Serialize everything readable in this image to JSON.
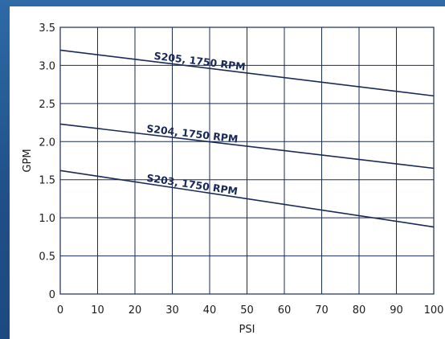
{
  "chart_data": {
    "type": "line",
    "title": "",
    "xlabel": "PSI",
    "ylabel": "GPM",
    "xlim": [
      0,
      100
    ],
    "ylim": [
      0,
      3.5
    ],
    "x_ticks": [
      "0",
      "10",
      "20",
      "30",
      "40",
      "50",
      "60",
      "70",
      "80",
      "90",
      "100"
    ],
    "y_ticks": [
      "0",
      "0.5",
      "1.0",
      "1.5",
      "2.0",
      "2.5",
      "3.0",
      "3.5"
    ],
    "grid": true,
    "legend": "none",
    "line_color": "#1a2a57",
    "series": [
      {
        "name": "S205, 1750 RPM",
        "x": [
          0,
          100
        ],
        "y": [
          3.2,
          2.6
        ],
        "label_at_x": 25
      },
      {
        "name": "S204, 1750 RPM",
        "x": [
          0,
          100
        ],
        "y": [
          2.23,
          1.65
        ],
        "label_at_x": 23
      },
      {
        "name": "S203, 1750 RPM",
        "x": [
          0,
          100
        ],
        "y": [
          1.62,
          0.88
        ],
        "label_at_x": 23
      }
    ]
  }
}
